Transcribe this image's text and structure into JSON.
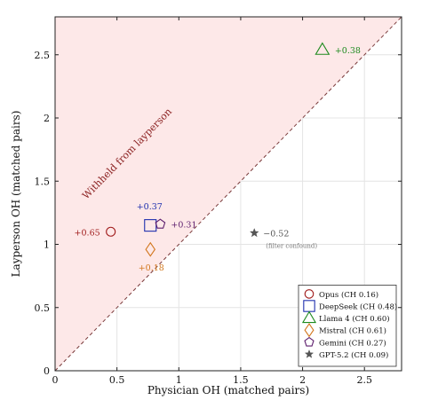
{
  "chart_data": {
    "type": "scatter",
    "title": "",
    "xlabel": "Physician OH (matched pairs)",
    "ylabel": "Layperson OH (matched pairs)",
    "xlim": [
      0,
      2.8
    ],
    "ylim": [
      0,
      2.8
    ],
    "xticks": [
      0,
      0.5,
      1,
      1.5,
      2,
      2.5
    ],
    "yticks": [
      0,
      0.5,
      1,
      1.5,
      2,
      2.5
    ],
    "xtick_labels": [
      "0",
      "0.5",
      "1",
      "1.5",
      "2",
      "2.5"
    ],
    "ytick_labels": [
      "0",
      "0.5",
      "1",
      "1.5",
      "2",
      "2.5"
    ],
    "grid": true,
    "diagonal": true,
    "region_label": "Withheld from layperson",
    "legend_position": "bottom-right",
    "series": [
      {
        "name": "Opus (CH 0.16)",
        "marker": "circle",
        "color": "#a01b1b",
        "x": 0.45,
        "y": 1.1,
        "label": "+0.65"
      },
      {
        "name": "DeepSeek (CH 0.48)",
        "marker": "square",
        "color": "#1f2fae",
        "x": 0.77,
        "y": 1.15,
        "label": "+0.37"
      },
      {
        "name": "Llama 4 (CH 0.60)",
        "marker": "triangle",
        "color": "#1e8a1e",
        "x": 2.16,
        "y": 2.54,
        "label": "+0.38"
      },
      {
        "name": "Mistral (CH 0.61)",
        "marker": "diamond",
        "color": "#d2761c",
        "x": 0.77,
        "y": 0.96,
        "label": "+0.18"
      },
      {
        "name": "Gemini (CH 0.27)",
        "marker": "pentagon",
        "color": "#5e1f6e",
        "x": 0.85,
        "y": 1.16,
        "label": "+0.31"
      },
      {
        "name": "GPT-5.2 (CH 0.09)",
        "marker": "star",
        "color": "#555555",
        "x": 1.61,
        "y": 1.09,
        "label": "−0.52",
        "note": "(filter confound)"
      }
    ]
  }
}
